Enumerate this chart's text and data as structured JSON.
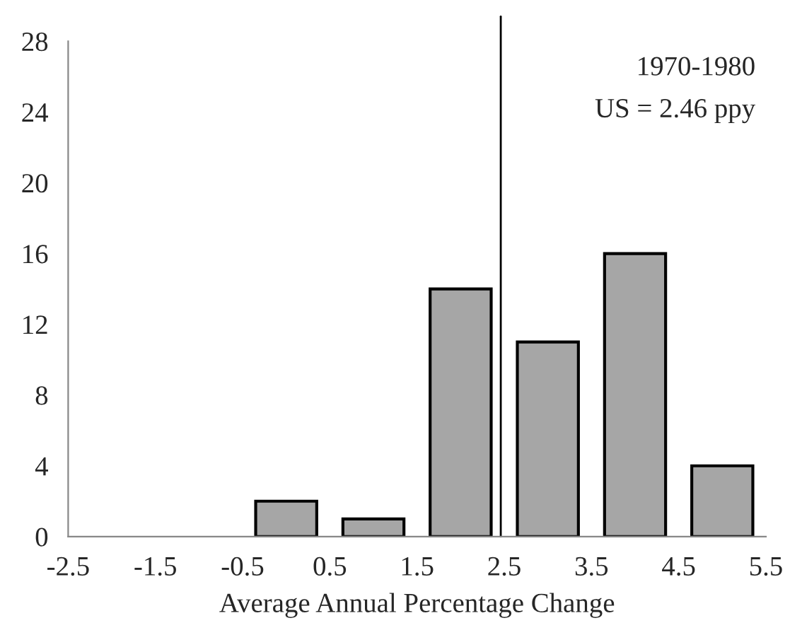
{
  "chart_data": {
    "type": "histogram",
    "xlabel": "Average Annual Percentage Change",
    "bins": [
      -2.5,
      -1.5,
      -0.5,
      0.5,
      1.5,
      2.5,
      3.5,
      4.5,
      5.5
    ],
    "values": [
      0,
      0,
      2,
      1,
      14,
      11,
      16,
      4
    ],
    "color": "#a6a6a6",
    "xlim": [
      -2.5,
      5.5
    ],
    "xticks": [
      -2.5,
      -1.5,
      -0.5,
      0.5,
      1.5,
      2.5,
      3.5,
      4.5,
      5.5
    ],
    "ylim": [
      0,
      28
    ],
    "yticks": [
      0,
      4,
      8,
      12,
      16,
      20,
      24,
      28
    ],
    "ref_lines": [
      {
        "axis": "x",
        "value": 2.46,
        "color": "#000000"
      }
    ],
    "annotations": [
      "1970-1980",
      "US = 2.46 ppy"
    ],
    "grid": false,
    "legend": false
  }
}
